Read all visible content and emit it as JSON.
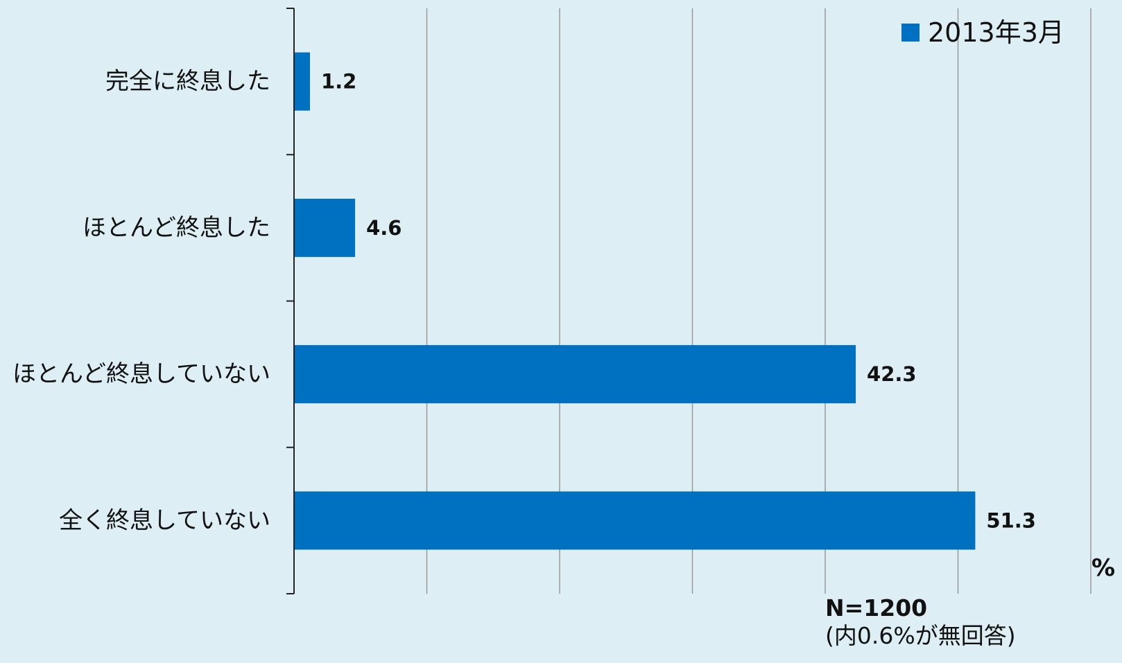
{
  "chart_data": {
    "type": "bar",
    "orientation": "horizontal",
    "categories": [
      "完全に終息した",
      "ほとんど終息した",
      "ほとんど終息していない",
      "全く終息していない"
    ],
    "series": [
      {
        "name": "2013年3月",
        "values": [
          1.2,
          4.6,
          42.3,
          51.3
        ]
      }
    ],
    "unit_label": "%",
    "xlim": [
      0,
      60
    ],
    "x_gridlines": [
      0,
      10,
      20,
      30,
      40,
      50,
      60
    ],
    "grid": true,
    "legend_position": "top-right",
    "colors": {
      "bar": "#0070c0",
      "background": "#ddeef4",
      "grid": "#999999",
      "axis": "#222222"
    }
  },
  "note": {
    "sample_size": "N=1200",
    "no_answer": "(内0.6%が無回答)"
  }
}
